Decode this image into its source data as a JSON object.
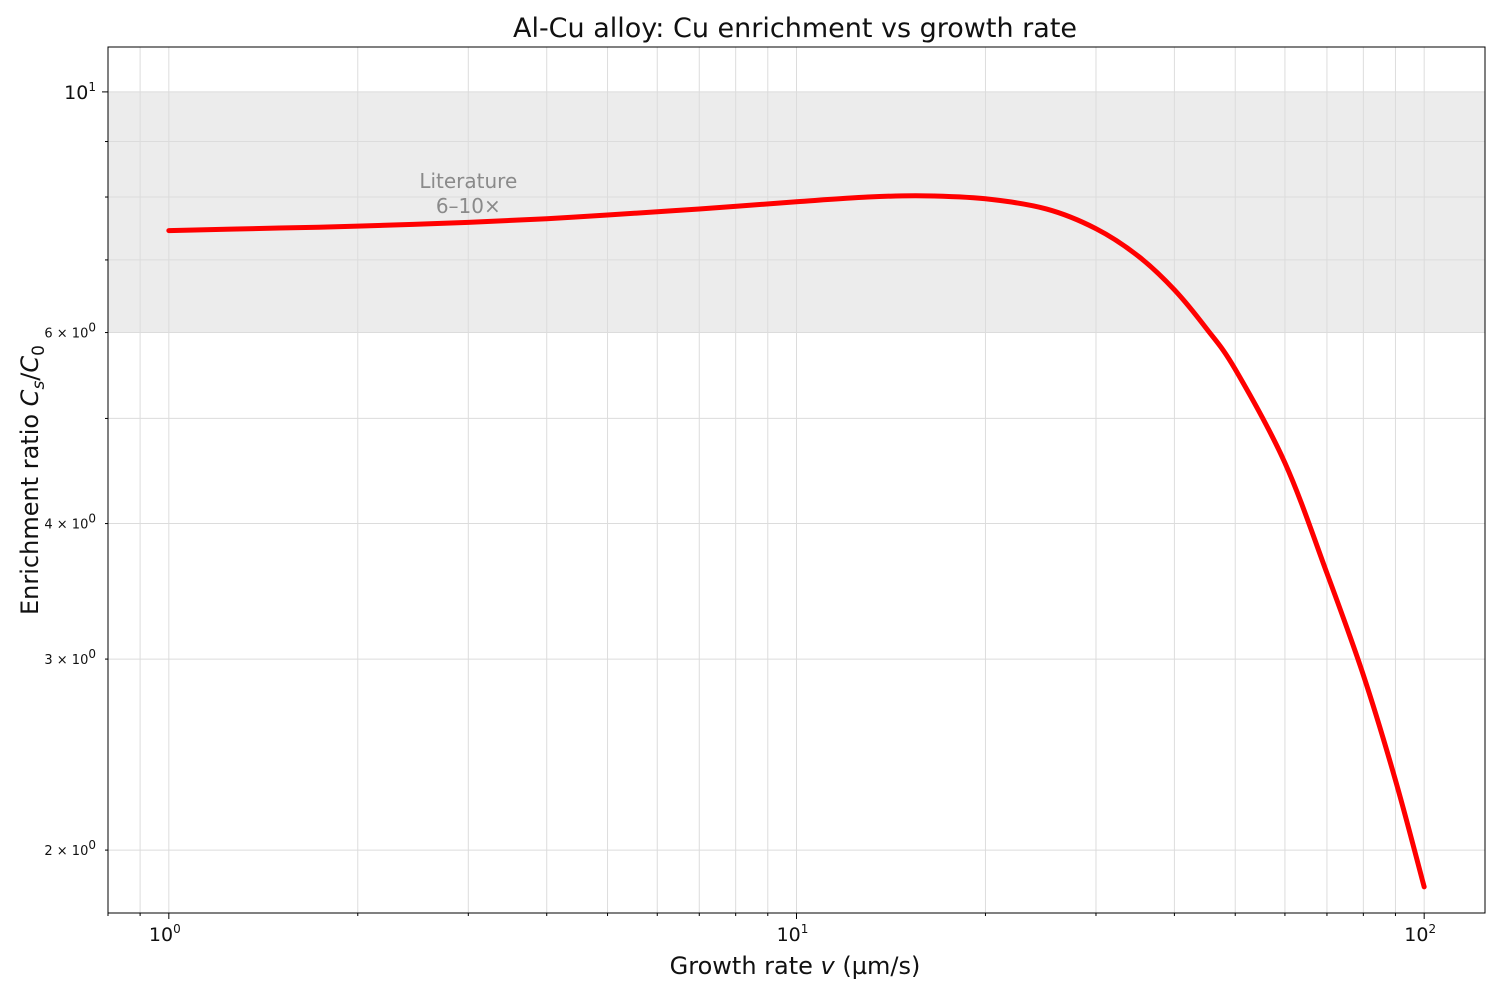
{
  "chart_data": {
    "type": "line",
    "title": "Al-Cu alloy: Cu enrichment vs growth rate",
    "xlabel": "Growth rate v (µm/s)",
    "ylabel": "Enrichment ratio Cs/C0",
    "xscale": "log",
    "yscale": "log",
    "xlim": [
      0.8,
      125
    ],
    "ylim": [
      1.75,
      11.0
    ],
    "grid": true,
    "x_ticks": [
      {
        "base": "10",
        "exp": "0",
        "value": 1
      },
      {
        "base": "10",
        "exp": "1",
        "value": 10
      },
      {
        "base": "10",
        "exp": "2",
        "value": 100
      }
    ],
    "y_ticks": [
      {
        "base": "10",
        "exp": "1",
        "value": 10,
        "major": true
      },
      {
        "base": "6 × 10",
        "exp": "0",
        "value": 6,
        "major": false
      },
      {
        "base": "4 × 10",
        "exp": "0",
        "value": 4,
        "major": false
      },
      {
        "base": "3 × 10",
        "exp": "0",
        "value": 3,
        "major": false
      },
      {
        "base": "2 × 10",
        "exp": "0",
        "value": 2,
        "major": false
      }
    ],
    "shaded_band": {
      "y_from": 6,
      "y_to": 10,
      "color": "#ececec"
    },
    "annotation": {
      "lines": [
        "Literature",
        "6–10×"
      ],
      "x": 3.0,
      "y": 7.95
    },
    "series": [
      {
        "color": "#ff0000",
        "x": [
          1,
          1.5,
          2,
          3,
          4,
          5,
          7,
          10,
          13,
          16,
          20,
          25,
          30,
          35,
          40,
          45,
          50,
          60,
          70,
          80,
          90,
          100
        ],
        "y": [
          7.45,
          7.49,
          7.52,
          7.58,
          7.64,
          7.7,
          7.8,
          7.92,
          8.0,
          8.02,
          7.97,
          7.8,
          7.48,
          7.06,
          6.57,
          6.05,
          5.55,
          4.55,
          3.6,
          2.9,
          2.32,
          1.85
        ]
      }
    ]
  }
}
